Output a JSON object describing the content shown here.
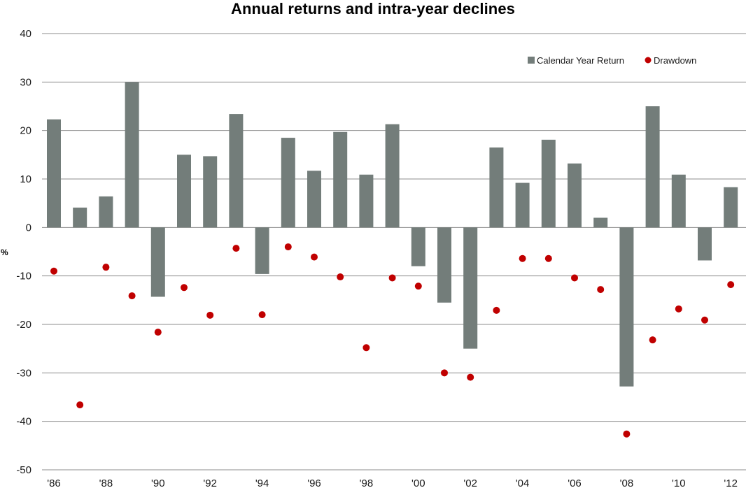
{
  "chart_data": {
    "type": "bar",
    "title": "Annual returns and intra-year declines",
    "ylabel": "%",
    "xlabel": "",
    "ylim": [
      -50,
      40
    ],
    "yticks": [
      40,
      30,
      20,
      10,
      0,
      -10,
      -20,
      -30,
      -40,
      -50
    ],
    "grid": true,
    "legend_position": "top-right",
    "categories": [
      "'86",
      "'87",
      "'88",
      "'89",
      "'90",
      "'91",
      "'92",
      "'93",
      "'94",
      "'95",
      "'96",
      "'97",
      "'98",
      "'99",
      "'00",
      "'01",
      "'02",
      "'03",
      "'04",
      "'05",
      "'06",
      "'07",
      "'08",
      "'09",
      "'10",
      "'11",
      "'12"
    ],
    "tick_labels": [
      "'86",
      "'88",
      "'90",
      "'92",
      "'94",
      "'96",
      "'98",
      "'00",
      "'02",
      "'04",
      "'06",
      "'08",
      "'10",
      "'12"
    ],
    "series": [
      {
        "name": "Calendar Year Return",
        "type": "bar",
        "color": "#737d7a",
        "values": [
          22.3,
          4.1,
          6.4,
          30.0,
          -14.3,
          15.0,
          14.7,
          23.4,
          -9.6,
          18.5,
          11.7,
          19.7,
          10.9,
          21.3,
          -8.0,
          -15.5,
          -25.0,
          16.5,
          9.2,
          18.1,
          13.2,
          2.0,
          -32.8,
          25.0,
          10.9,
          -6.8,
          8.3
        ]
      },
      {
        "name": "Drawdown",
        "type": "scatter",
        "color": "#c00000",
        "values": [
          -9.0,
          -36.6,
          -8.2,
          -14.1,
          -21.6,
          -12.4,
          -18.1,
          -4.3,
          -18.0,
          -4.0,
          -6.1,
          -10.2,
          -24.8,
          -10.4,
          -12.1,
          -30.0,
          -30.9,
          -17.1,
          -6.4,
          -6.4,
          -10.4,
          -12.8,
          -42.6,
          -23.2,
          -16.8,
          -19.1,
          -11.8
        ]
      }
    ]
  }
}
